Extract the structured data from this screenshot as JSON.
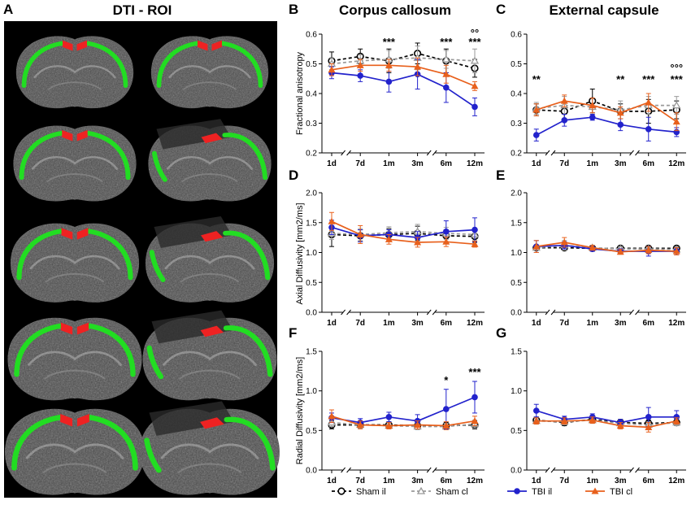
{
  "figure": {
    "panel_letters": [
      "A",
      "B",
      "C",
      "D",
      "E",
      "F",
      "G"
    ],
    "col_titles": {
      "A": "DTI - ROI",
      "B": "Corpus callosum",
      "C": "External capsule"
    },
    "y_labels": {
      "row1": "Fractional anisotropy",
      "row2": "Axial Diffusivity [mm2/ms]",
      "row3": "Radial Diffusivity [mm2/ms]"
    },
    "x_categories": [
      "1d",
      "7d",
      "1m",
      "3m",
      "6m",
      "12m"
    ],
    "legend": [
      {
        "name": "Sham il",
        "color": "#000000",
        "marker": "open-circle",
        "dash": "4,3"
      },
      {
        "name": "Sham cl",
        "color": "#999999",
        "marker": "open-triangle",
        "dash": "4,3"
      },
      {
        "name": "TBI il",
        "color": "#2222cc",
        "marker": "filled-circle",
        "dash": ""
      },
      {
        "name": "TBI cl",
        "color": "#e8601c",
        "marker": "filled-triangle",
        "dash": ""
      }
    ],
    "colors": {
      "roi_green": "#22dd22",
      "roi_red": "#ee2222",
      "brain_bg": "#000000"
    }
  },
  "chart_data": [
    {
      "panel": "B",
      "type": "line",
      "ylim": [
        0.2,
        0.6
      ],
      "yticks": [
        "0.2",
        "0.3",
        "0.4",
        "0.5",
        "0.6"
      ],
      "series": [
        {
          "name": "Sham il",
          "values": [
            0.51,
            0.525,
            0.51,
            0.535,
            0.51,
            0.485
          ],
          "err": [
            0.03,
            0.025,
            0.04,
            0.035,
            0.04,
            0.03
          ]
        },
        {
          "name": "Sham cl",
          "values": [
            0.5,
            0.51,
            0.515,
            0.52,
            0.515,
            0.51
          ],
          "err": [
            0.02,
            0.02,
            0.03,
            0.04,
            0.03,
            0.04
          ]
        },
        {
          "name": "TBI il",
          "values": [
            0.47,
            0.46,
            0.44,
            0.465,
            0.42,
            0.355
          ],
          "err": [
            0.02,
            0.02,
            0.035,
            0.05,
            0.05,
            0.03
          ]
        },
        {
          "name": "TBI cl",
          "values": [
            0.48,
            0.495,
            0.495,
            0.49,
            0.465,
            0.425
          ],
          "err": [
            0.02,
            0.02,
            0.02,
            0.03,
            0.03,
            0.015
          ]
        }
      ],
      "annotations": [
        {
          "x": "1m",
          "text": "***"
        },
        {
          "x": "6m",
          "text": "***"
        },
        {
          "x": "12m",
          "text": "***"
        },
        {
          "x": "12m",
          "text": "°°",
          "level": 2
        }
      ]
    },
    {
      "panel": "C",
      "type": "line",
      "ylim": [
        0.2,
        0.6
      ],
      "yticks": [
        "0.2",
        "0.3",
        "0.4",
        "0.5",
        "0.6"
      ],
      "series": [
        {
          "name": "Sham il",
          "values": [
            0.345,
            0.34,
            0.375,
            0.34,
            0.34,
            0.345
          ],
          "err": [
            0.02,
            0.03,
            0.04,
            0.025,
            0.04,
            0.03
          ]
        },
        {
          "name": "Sham cl",
          "values": [
            0.35,
            0.36,
            0.355,
            0.345,
            0.36,
            0.36
          ],
          "err": [
            0.02,
            0.03,
            0.03,
            0.03,
            0.03,
            0.03
          ]
        },
        {
          "name": "TBI il",
          "values": [
            0.26,
            0.31,
            0.32,
            0.295,
            0.28,
            0.27
          ],
          "err": [
            0.02,
            0.02,
            0.01,
            0.02,
            0.04,
            0.015
          ]
        },
        {
          "name": "TBI cl",
          "values": [
            0.345,
            0.375,
            0.36,
            0.335,
            0.37,
            0.305
          ],
          "err": [
            0.02,
            0.02,
            0.025,
            0.02,
            0.03,
            0.03
          ]
        }
      ],
      "annotations": [
        {
          "x": "1d",
          "text": "**"
        },
        {
          "x": "3m",
          "text": "**"
        },
        {
          "x": "6m",
          "text": "***"
        },
        {
          "x": "12m",
          "text": "***"
        },
        {
          "x": "12m",
          "text": "°°°",
          "level": 2
        }
      ]
    },
    {
      "panel": "D",
      "type": "line",
      "ylim": [
        0,
        2
      ],
      "yticks": [
        "0.0",
        "0.5",
        "1.0",
        "1.5",
        "2.0"
      ],
      "series": [
        {
          "name": "Sham il",
          "values": [
            1.3,
            1.28,
            1.3,
            1.32,
            1.28,
            1.27
          ],
          "err": [
            0.2,
            0.1,
            0.1,
            0.12,
            0.1,
            0.1
          ]
        },
        {
          "name": "Sham cl",
          "values": [
            1.32,
            1.3,
            1.33,
            1.35,
            1.32,
            1.3
          ],
          "err": [
            0.1,
            0.1,
            0.1,
            0.12,
            0.1,
            0.1
          ]
        },
        {
          "name": "TBI il",
          "values": [
            1.42,
            1.28,
            1.3,
            1.25,
            1.35,
            1.38
          ],
          "err": [
            0.12,
            0.1,
            0.08,
            0.1,
            0.18,
            0.2
          ]
        },
        {
          "name": "TBI cl",
          "values": [
            1.52,
            1.3,
            1.22,
            1.17,
            1.18,
            1.14
          ],
          "err": [
            0.15,
            0.15,
            0.08,
            0.08,
            0.08,
            0.05
          ]
        }
      ],
      "annotations": []
    },
    {
      "panel": "E",
      "type": "line",
      "ylim": [
        0,
        2
      ],
      "yticks": [
        "0.0",
        "0.5",
        "1.0",
        "1.5",
        "2.0"
      ],
      "series": [
        {
          "name": "Sham il",
          "values": [
            1.08,
            1.08,
            1.07,
            1.07,
            1.07,
            1.07
          ],
          "err": [
            0.04,
            0.04,
            0.04,
            0.04,
            0.04,
            0.04
          ]
        },
        {
          "name": "Sham cl",
          "values": [
            1.08,
            1.12,
            1.08,
            1.06,
            1.06,
            1.05
          ],
          "err": [
            0.04,
            0.08,
            0.04,
            0.04,
            0.04,
            0.04
          ]
        },
        {
          "name": "TBI il",
          "values": [
            1.1,
            1.12,
            1.06,
            1.02,
            1.02,
            1.02
          ],
          "err": [
            0.1,
            0.06,
            0.04,
            0.04,
            0.08,
            0.06
          ]
        },
        {
          "name": "TBI cl",
          "values": [
            1.1,
            1.17,
            1.08,
            1.01,
            1.04,
            1.02
          ],
          "err": [
            0.1,
            0.08,
            0.04,
            0.04,
            0.06,
            0.06
          ]
        }
      ],
      "annotations": []
    },
    {
      "panel": "F",
      "type": "line",
      "ylim": [
        0,
        1.5
      ],
      "yticks": [
        "0.0",
        "0.5",
        "1.0",
        "1.5"
      ],
      "series": [
        {
          "name": "Sham il",
          "values": [
            0.57,
            0.57,
            0.57,
            0.56,
            0.56,
            0.57
          ],
          "err": [
            0.05,
            0.04,
            0.04,
            0.04,
            0.04,
            0.05
          ]
        },
        {
          "name": "Sham cl",
          "values": [
            0.6,
            0.57,
            0.56,
            0.55,
            0.55,
            0.58
          ],
          "err": [
            0.05,
            0.04,
            0.04,
            0.04,
            0.04,
            0.05
          ]
        },
        {
          "name": "TBI il",
          "values": [
            0.66,
            0.6,
            0.67,
            0.62,
            0.77,
            0.92
          ],
          "err": [
            0.06,
            0.05,
            0.06,
            0.08,
            0.25,
            0.2
          ]
        },
        {
          "name": "TBI cl",
          "values": [
            0.68,
            0.57,
            0.56,
            0.57,
            0.56,
            0.62
          ],
          "err": [
            0.08,
            0.05,
            0.04,
            0.05,
            0.05,
            0.06
          ]
        }
      ],
      "annotations": [
        {
          "x": "6m",
          "text": "*"
        },
        {
          "x": "12m",
          "text": "***"
        }
      ]
    },
    {
      "panel": "G",
      "type": "line",
      "ylim": [
        0,
        1.5
      ],
      "yticks": [
        "0.0",
        "0.5",
        "1.0",
        "1.5"
      ],
      "series": [
        {
          "name": "Sham il",
          "values": [
            0.63,
            0.6,
            0.64,
            0.6,
            0.59,
            0.6
          ],
          "err": [
            0.04,
            0.04,
            0.04,
            0.04,
            0.04,
            0.04
          ]
        },
        {
          "name": "Sham cl",
          "values": [
            0.62,
            0.61,
            0.63,
            0.59,
            0.57,
            0.6
          ],
          "err": [
            0.04,
            0.04,
            0.04,
            0.04,
            0.04,
            0.04
          ]
        },
        {
          "name": "TBI il",
          "values": [
            0.75,
            0.64,
            0.67,
            0.6,
            0.67,
            0.67
          ],
          "err": [
            0.08,
            0.04,
            0.04,
            0.04,
            0.12,
            0.08
          ]
        },
        {
          "name": "TBI cl",
          "values": [
            0.62,
            0.62,
            0.63,
            0.56,
            0.54,
            0.62
          ],
          "err": [
            0.04,
            0.04,
            0.04,
            0.04,
            0.06,
            0.04
          ]
        }
      ],
      "annotations": []
    }
  ]
}
